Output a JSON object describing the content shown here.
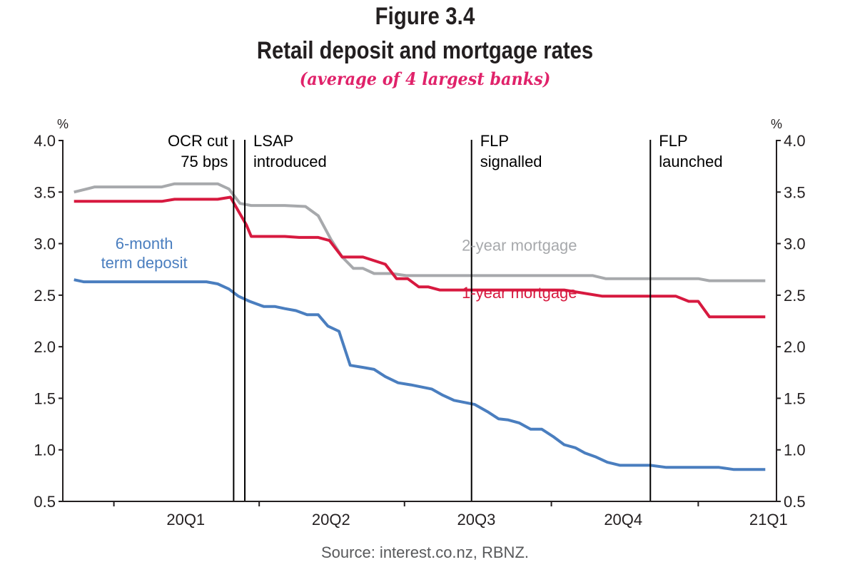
{
  "header": {
    "figure_number": "Figure 3.4",
    "title": "Retail deposit and mortgage rates",
    "subtitle": "(average of 4 largest banks)"
  },
  "footer": {
    "source": "Source: interest.co.nz, RBNZ."
  },
  "chart_data": {
    "type": "line",
    "title": "Retail deposit and mortgage rates",
    "subtitle": "(average of 4 largest banks)",
    "xlabel": "",
    "ylabel": "%",
    "ylabel_right": "%",
    "xlim": [
      "2019-11-30",
      "2021-02-19"
    ],
    "ylim": [
      0.5,
      4.0
    ],
    "y_ticks": [
      0.5,
      1.0,
      1.5,
      2.0,
      2.5,
      3.0,
      3.5,
      4.0
    ],
    "y_tick_labels": [
      "0.5",
      "1.0",
      "1.5",
      "2.0",
      "2.5",
      "3.0",
      "3.5",
      "4.0"
    ],
    "x_ticks": [
      "2020-01-01",
      "2020-04-01",
      "2020-07-01",
      "2020-10-01",
      "2021-01-01"
    ],
    "x_category_labels": [
      {
        "label": "20Q1",
        "center": "2020-02-15"
      },
      {
        "label": "20Q2",
        "center": "2020-05-16"
      },
      {
        "label": "20Q3",
        "center": "2020-08-15"
      },
      {
        "label": "20Q4",
        "center": "2020-11-15"
      },
      {
        "label": "21Q1",
        "center": "2021-02-14"
      }
    ],
    "grid": false,
    "legend": "inline labels",
    "colors": {
      "term_deposit": "#4a7ebf",
      "mortgage_1y": "#d7193f",
      "mortgage_2y": "#a7a9ac",
      "event_line": "#000000",
      "axis": "#231f20"
    },
    "events": [
      {
        "date": "2020-03-16",
        "label_lines": [
          "OCR cut",
          "75 bps"
        ],
        "label_side": "left"
      },
      {
        "date": "2020-03-23",
        "label_lines": [
          "LSAP",
          "introduced"
        ],
        "label_side": "right"
      },
      {
        "date": "2020-08-12",
        "label_lines": [
          "FLP",
          "signalled"
        ],
        "label_side": "right"
      },
      {
        "date": "2020-12-02",
        "label_lines": [
          "FLP",
          "launched"
        ],
        "label_side": "right"
      }
    ],
    "series": [
      {
        "name": "2-year mortgage",
        "key": "mortgage_2y",
        "label_lines": [
          "2-year mortgage"
        ],
        "label_anchor": {
          "date": "2020-09-11",
          "value": 2.93
        },
        "points": [
          [
            "2019-12-07",
            3.5
          ],
          [
            "2019-12-20",
            3.55
          ],
          [
            "2020-01-31",
            3.55
          ],
          [
            "2020-02-08",
            3.58
          ],
          [
            "2020-03-06",
            3.58
          ],
          [
            "2020-03-13",
            3.53
          ],
          [
            "2020-03-20",
            3.39
          ],
          [
            "2020-03-27",
            3.37
          ],
          [
            "2020-04-17",
            3.37
          ],
          [
            "2020-04-30",
            3.36
          ],
          [
            "2020-05-08",
            3.27
          ],
          [
            "2020-05-16",
            3.04
          ],
          [
            "2020-05-23",
            2.87
          ],
          [
            "2020-05-30",
            2.76
          ],
          [
            "2020-06-05",
            2.76
          ],
          [
            "2020-06-12",
            2.71
          ],
          [
            "2020-06-23",
            2.71
          ],
          [
            "2020-07-02",
            2.69
          ],
          [
            "2020-10-27",
            2.69
          ],
          [
            "2020-11-04",
            2.66
          ],
          [
            "2021-01-01",
            2.66
          ],
          [
            "2021-01-08",
            2.64
          ],
          [
            "2021-02-12",
            2.64
          ]
        ]
      },
      {
        "name": "1-year mortgage",
        "key": "mortgage_1y",
        "label_lines": [
          "1-year mortgage"
        ],
        "label_anchor": {
          "date": "2020-09-11",
          "value": 2.47
        },
        "points": [
          [
            "2019-12-07",
            3.41
          ],
          [
            "2020-01-31",
            3.41
          ],
          [
            "2020-02-08",
            3.43
          ],
          [
            "2020-03-06",
            3.43
          ],
          [
            "2020-03-14",
            3.45
          ],
          [
            "2020-03-24",
            3.18
          ],
          [
            "2020-03-27",
            3.07
          ],
          [
            "2020-04-17",
            3.07
          ],
          [
            "2020-04-26",
            3.06
          ],
          [
            "2020-05-08",
            3.06
          ],
          [
            "2020-05-15",
            3.03
          ],
          [
            "2020-05-23",
            2.87
          ],
          [
            "2020-06-05",
            2.87
          ],
          [
            "2020-06-19",
            2.8
          ],
          [
            "2020-06-26",
            2.66
          ],
          [
            "2020-07-03",
            2.66
          ],
          [
            "2020-07-10",
            2.58
          ],
          [
            "2020-07-16",
            2.58
          ],
          [
            "2020-07-23",
            2.55
          ],
          [
            "2020-10-09",
            2.55
          ],
          [
            "2020-11-02",
            2.49
          ],
          [
            "2020-12-18",
            2.49
          ],
          [
            "2020-12-26",
            2.44
          ],
          [
            "2021-01-01",
            2.44
          ],
          [
            "2021-01-08",
            2.29
          ],
          [
            "2021-02-12",
            2.29
          ]
        ]
      },
      {
        "name": "6-month term deposit",
        "key": "term_deposit",
        "label_lines": [
          "6-month",
          "term deposit"
        ],
        "label_anchor": {
          "date": "2020-01-20",
          "value": 2.95
        },
        "points": [
          [
            "2019-12-07",
            2.65
          ],
          [
            "2019-12-13",
            2.63
          ],
          [
            "2020-02-28",
            2.63
          ],
          [
            "2020-03-06",
            2.61
          ],
          [
            "2020-03-13",
            2.56
          ],
          [
            "2020-03-19",
            2.49
          ],
          [
            "2020-03-26",
            2.44
          ],
          [
            "2020-04-02",
            2.4
          ],
          [
            "2020-04-04",
            2.39
          ],
          [
            "2020-04-11",
            2.39
          ],
          [
            "2020-04-17",
            2.37
          ],
          [
            "2020-04-24",
            2.35
          ],
          [
            "2020-05-01",
            2.31
          ],
          [
            "2020-05-08",
            2.31
          ],
          [
            "2020-05-14",
            2.2
          ],
          [
            "2020-05-21",
            2.15
          ],
          [
            "2020-05-28",
            1.82
          ],
          [
            "2020-06-05",
            1.8
          ],
          [
            "2020-06-12",
            1.78
          ],
          [
            "2020-06-19",
            1.71
          ],
          [
            "2020-06-27",
            1.65
          ],
          [
            "2020-07-05",
            1.63
          ],
          [
            "2020-07-18",
            1.59
          ],
          [
            "2020-07-25",
            1.53
          ],
          [
            "2020-08-01",
            1.48
          ],
          [
            "2020-08-14",
            1.44
          ],
          [
            "2020-08-22",
            1.37
          ],
          [
            "2020-08-29",
            1.3
          ],
          [
            "2020-09-04",
            1.29
          ],
          [
            "2020-09-11",
            1.26
          ],
          [
            "2020-09-18",
            1.2
          ],
          [
            "2020-09-25",
            1.2
          ],
          [
            "2020-10-02",
            1.13
          ],
          [
            "2020-10-09",
            1.05
          ],
          [
            "2020-10-16",
            1.02
          ],
          [
            "2020-10-22",
            0.97
          ],
          [
            "2020-10-29",
            0.93
          ],
          [
            "2020-11-05",
            0.88
          ],
          [
            "2020-11-13",
            0.85
          ],
          [
            "2020-12-02",
            0.85
          ],
          [
            "2020-12-12",
            0.83
          ],
          [
            "2021-01-14",
            0.83
          ],
          [
            "2021-01-23",
            0.81
          ],
          [
            "2021-02-12",
            0.81
          ]
        ]
      }
    ]
  }
}
